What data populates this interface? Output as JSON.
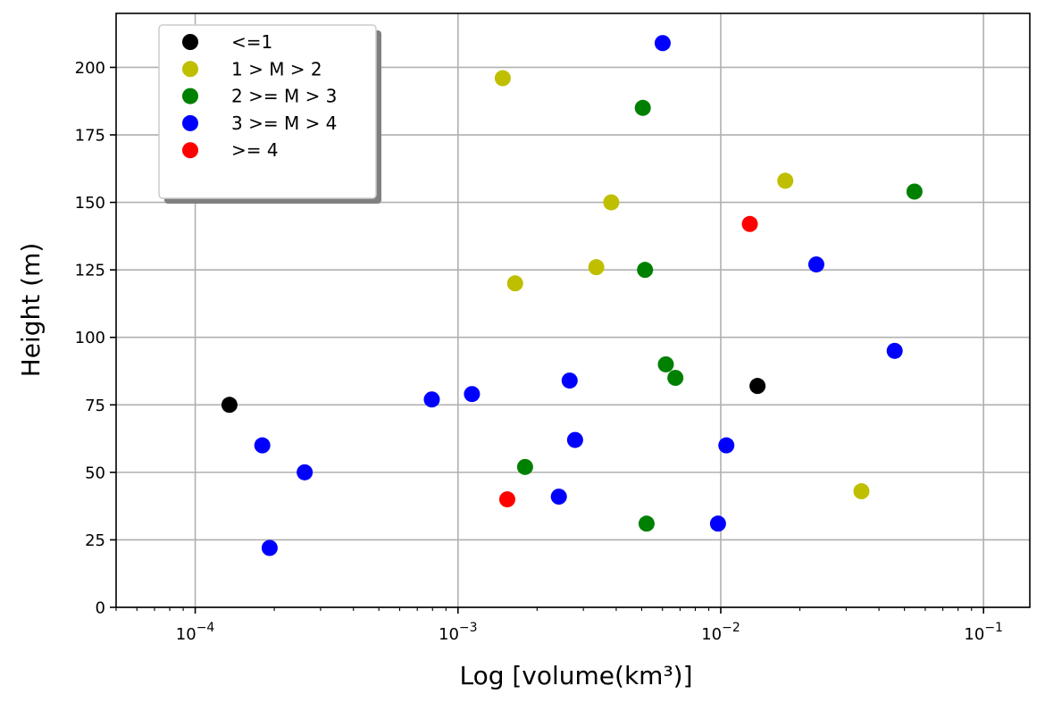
{
  "chart_data": {
    "type": "scatter",
    "xlabel": "Log [volume(km³)]",
    "ylabel": "Height (m)",
    "xscale": "log",
    "xlim": [
      5e-05,
      0.15
    ],
    "ylim": [
      0,
      220
    ],
    "x_ticks": [
      0.0001,
      0.001,
      0.01,
      0.1
    ],
    "x_tick_labels": [
      {
        "base": "10",
        "exp": "−4"
      },
      {
        "base": "10",
        "exp": "−3"
      },
      {
        "base": "10",
        "exp": "−2"
      },
      {
        "base": "10",
        "exp": "−1"
      }
    ],
    "y_ticks": [
      "0",
      "25",
      "50",
      "75",
      "100",
      "125",
      "150",
      "175",
      "200"
    ],
    "grid": true,
    "legend_position": "top-left",
    "series": [
      {
        "name": "<=1",
        "color": "#000000",
        "points": [
          {
            "x": 0.000135,
            "y": 75
          },
          {
            "x": 0.0138,
            "y": 82
          }
        ]
      },
      {
        "name": "1 > M > 2",
        "color": "#bfbf00",
        "points": [
          {
            "x": 0.00148,
            "y": 196
          },
          {
            "x": 0.00383,
            "y": 150
          },
          {
            "x": 0.0176,
            "y": 158
          },
          {
            "x": 0.00336,
            "y": 126
          },
          {
            "x": 0.00165,
            "y": 120
          },
          {
            "x": 0.0343,
            "y": 43
          }
        ]
      },
      {
        "name": "2 >= M > 3",
        "color": "#008000",
        "points": [
          {
            "x": 0.00505,
            "y": 185
          },
          {
            "x": 0.0546,
            "y": 154
          },
          {
            "x": 0.00515,
            "y": 125
          },
          {
            "x": 0.00618,
            "y": 90
          },
          {
            "x": 0.00672,
            "y": 85
          },
          {
            "x": 0.0018,
            "y": 52
          },
          {
            "x": 0.00522,
            "y": 31
          }
        ]
      },
      {
        "name": "3 >= M > 4",
        "color": "#0000ff",
        "points": [
          {
            "x": 0.00601,
            "y": 209
          },
          {
            "x": 0.0231,
            "y": 127
          },
          {
            "x": 0.0459,
            "y": 95
          },
          {
            "x": 0.000795,
            "y": 77
          },
          {
            "x": 0.00113,
            "y": 79
          },
          {
            "x": 0.00266,
            "y": 84
          },
          {
            "x": 0.00018,
            "y": 60
          },
          {
            "x": 0.000261,
            "y": 50
          },
          {
            "x": 0.000192,
            "y": 22
          },
          {
            "x": 0.00279,
            "y": 62
          },
          {
            "x": 0.00242,
            "y": 41
          },
          {
            "x": 0.0105,
            "y": 60
          },
          {
            "x": 0.00976,
            "y": 31
          }
        ]
      },
      {
        "name": ">= 4",
        "color": "#ff0000",
        "points": [
          {
            "x": 0.0129,
            "y": 142
          },
          {
            "x": 0.00154,
            "y": 40
          }
        ]
      }
    ]
  }
}
